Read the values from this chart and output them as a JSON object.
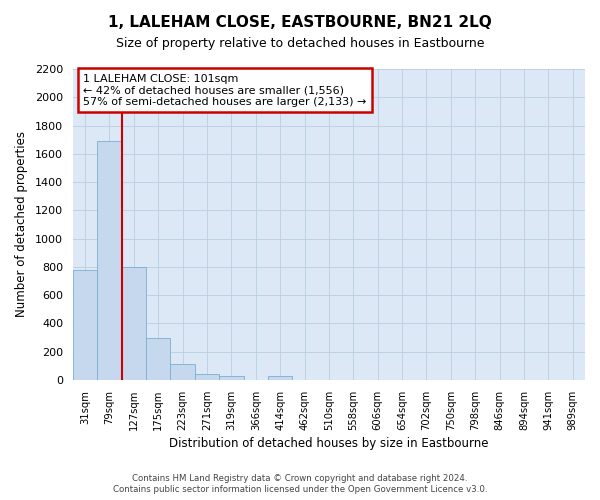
{
  "title": "1, LALEHAM CLOSE, EASTBOURNE, BN21 2LQ",
  "subtitle": "Size of property relative to detached houses in Eastbourne",
  "xlabel": "Distribution of detached houses by size in Eastbourne",
  "ylabel": "Number of detached properties",
  "categories": [
    "31sqm",
    "79sqm",
    "127sqm",
    "175sqm",
    "223sqm",
    "271sqm",
    "319sqm",
    "366sqm",
    "414sqm",
    "462sqm",
    "510sqm",
    "558sqm",
    "606sqm",
    "654sqm",
    "702sqm",
    "750sqm",
    "798sqm",
    "846sqm",
    "894sqm",
    "941sqm",
    "989sqm"
  ],
  "values": [
    780,
    1690,
    800,
    295,
    115,
    40,
    30,
    0,
    30,
    0,
    0,
    0,
    0,
    0,
    0,
    0,
    0,
    0,
    0,
    0,
    0
  ],
  "bar_color": "#c5d8ee",
  "bar_edge_color": "#7aaed0",
  "vline_color": "#cc0000",
  "annotation_title": "1 LALEHAM CLOSE: 101sqm",
  "annotation_line1": "← 42% of detached houses are smaller (1,556)",
  "annotation_line2": "57% of semi-detached houses are larger (2,133) →",
  "annotation_box_color": "#ffffff",
  "annotation_box_edge": "#cc0000",
  "ylim": [
    0,
    2200
  ],
  "yticks": [
    0,
    200,
    400,
    600,
    800,
    1000,
    1200,
    1400,
    1600,
    1800,
    2000,
    2200
  ],
  "footer1": "Contains HM Land Registry data © Crown copyright and database right 2024.",
  "footer2": "Contains public sector information licensed under the Open Government Licence v3.0.",
  "background_color": "#ffffff",
  "plot_bg_color": "#dce8f5",
  "grid_color": "#b8cfe0"
}
